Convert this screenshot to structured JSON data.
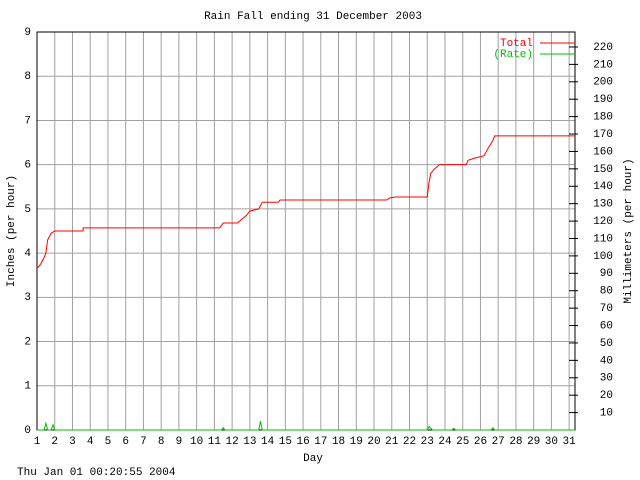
{
  "chart_data": {
    "type": "line",
    "title": "Rain Fall ending 31 December 2003",
    "xlabel": "Day",
    "ylabel": "Inches (per hour)",
    "y2label": "Millimeters (per hour)",
    "footer": "Thu Jan 01 00:20:55 2004",
    "xlim": [
      1,
      31.33
    ],
    "xticks": [
      1,
      2,
      3,
      4,
      5,
      6,
      7,
      8,
      9,
      10,
      11,
      12,
      13,
      14,
      15,
      16,
      17,
      18,
      19,
      20,
      21,
      22,
      23,
      24,
      25,
      26,
      27,
      28,
      29,
      30,
      31
    ],
    "ylim": [
      0,
      9
    ],
    "yticks": [
      0,
      1,
      2,
      3,
      4,
      5,
      6,
      7,
      8,
      9
    ],
    "y2lim": [
      0,
      228.6
    ],
    "y2ticks": [
      10,
      20,
      30,
      40,
      50,
      60,
      70,
      80,
      90,
      100,
      110,
      120,
      130,
      140,
      150,
      160,
      170,
      180,
      190,
      200,
      210,
      220
    ],
    "grid": true,
    "legend": "top-right",
    "series": [
      {
        "name": "Total",
        "color": "#ff0000",
        "x": [
          1,
          1.2,
          1.4,
          1.5,
          1.6,
          1.8,
          2.0,
          3.6,
          3.6,
          11.3,
          11.5,
          12.3,
          12.5,
          12.8,
          13.0,
          13.5,
          13.7,
          14.6,
          14.7,
          20.7,
          20.9,
          21.2,
          23.0,
          23.1,
          23.2,
          23.4,
          23.7,
          25.2,
          25.3,
          25.7,
          26.2,
          26.4,
          26.7,
          26.8,
          31.33
        ],
        "values": [
          3.65,
          3.75,
          3.9,
          4.0,
          4.3,
          4.45,
          4.5,
          4.5,
          4.57,
          4.57,
          4.68,
          4.68,
          4.75,
          4.85,
          4.95,
          5.0,
          5.15,
          5.15,
          5.2,
          5.2,
          5.25,
          5.27,
          5.27,
          5.6,
          5.8,
          5.9,
          6.0,
          6.0,
          6.1,
          6.15,
          6.2,
          6.35,
          6.55,
          6.65,
          6.65
        ]
      },
      {
        "name": "(Rate)",
        "color": "#00c000",
        "x": [
          1,
          1.4,
          1.5,
          1.6,
          1.8,
          1.9,
          2.0,
          11.4,
          11.5,
          11.6,
          13.5,
          13.6,
          13.7,
          23.0,
          23.1,
          23.3,
          24.4,
          24.5,
          24.6,
          26.6,
          26.7,
          26.8,
          31.33
        ],
        "values": [
          0,
          0,
          0.15,
          0,
          0,
          0.12,
          0,
          0,
          0.05,
          0,
          0,
          0.2,
          0,
          0,
          0.08,
          0,
          0,
          0.04,
          0,
          0,
          0.05,
          0,
          0
        ]
      }
    ]
  }
}
